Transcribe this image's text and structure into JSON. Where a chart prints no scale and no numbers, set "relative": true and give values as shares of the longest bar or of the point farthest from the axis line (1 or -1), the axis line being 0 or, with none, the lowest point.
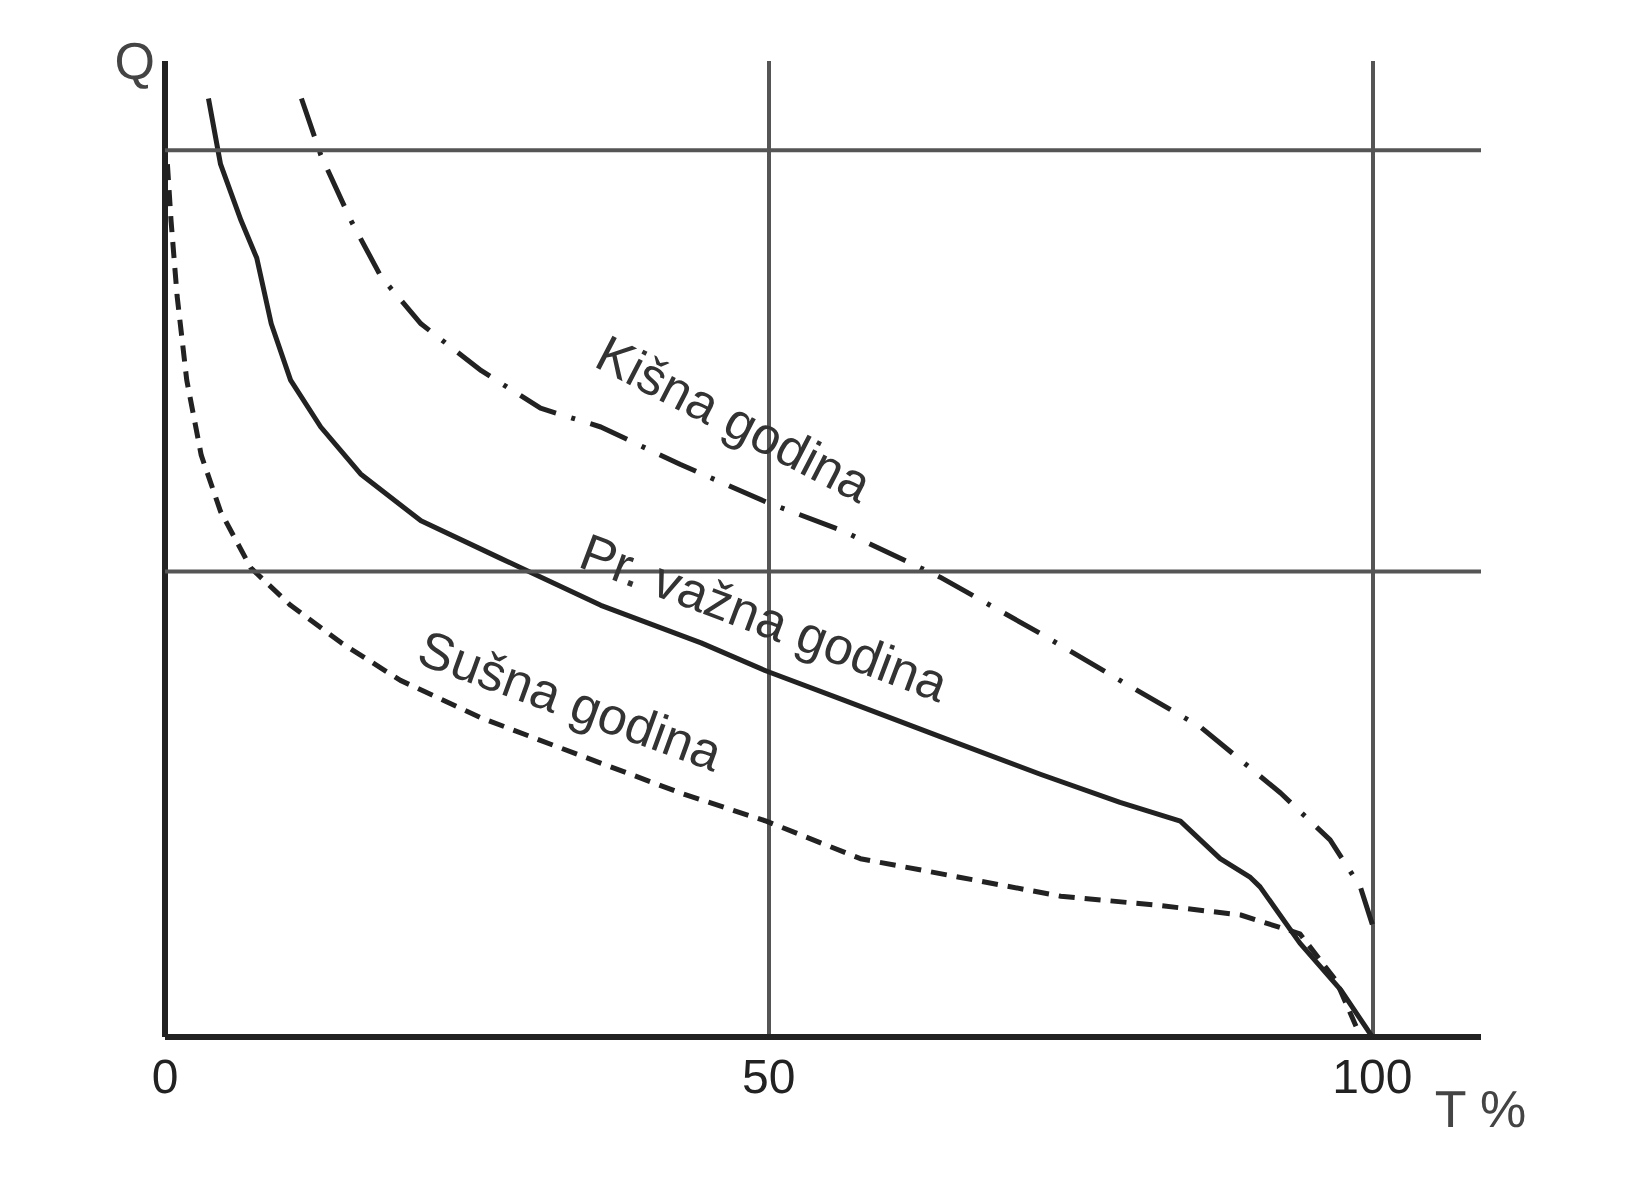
{
  "chart_data": {
    "type": "line",
    "relative": true,
    "ylabel": "Q",
    "xlabel": "T %",
    "xlim": [
      0,
      109
    ],
    "xticks": [
      0,
      50,
      100
    ],
    "grid": "x",
    "tick_labels": "x",
    "legend": false,
    "ref_lines": [
      {
        "axis": "y",
        "value": 0.945,
        "color": "#555555"
      },
      {
        "axis": "y",
        "value": 0.496,
        "color": "#555555"
      }
    ],
    "series": [
      {
        "name": "Kišna godina",
        "color": "#222222",
        "line_style": "dashdot",
        "x": [
          11.3,
          12.9,
          15.4,
          17.9,
          21.2,
          26.2,
          31.1,
          36.1,
          42.7,
          49.8,
          56.0,
          64.2,
          72.5,
          79.1,
          85.8,
          92.4,
          96.5,
          99.0,
          100
        ],
        "values": [
          1.0,
          0.94,
          0.87,
          0.81,
          0.76,
          0.71,
          0.67,
          0.65,
          0.61,
          0.57,
          0.54,
          0.49,
          0.43,
          0.38,
          0.33,
          0.26,
          0.21,
          0.16,
          0.12
        ]
      },
      {
        "name": "Pr. važna godina",
        "color": "#222222",
        "line_style": "solid",
        "x": [
          3.6,
          4.6,
          6.3,
          7.6,
          8.8,
          10.4,
          12.9,
          16.2,
          21.2,
          27.8,
          36.1,
          44.4,
          49.8,
          56.0,
          64.2,
          72.5,
          79.1,
          84.1,
          87.4,
          89.9,
          90.7,
          94.0,
          97.4,
          100
        ],
        "values": [
          1.0,
          0.93,
          0.87,
          0.83,
          0.76,
          0.7,
          0.65,
          0.6,
          0.55,
          0.51,
          0.46,
          0.42,
          0.39,
          0.36,
          0.32,
          0.28,
          0.25,
          0.23,
          0.19,
          0.17,
          0.16,
          0.1,
          0.05,
          0
        ]
      },
      {
        "name": "Sušna godina",
        "color": "#222222",
        "line_style": "dashed",
        "x": [
          0.2,
          0.5,
          1.0,
          1.8,
          3.0,
          4.6,
          7.1,
          10.4,
          14.6,
          19.5,
          26.2,
          34.4,
          42.7,
          49.8,
          57.6,
          65.9,
          74.2,
          82.5,
          89.1,
          94.0,
          97.0,
          98.7
        ],
        "values": [
          0.93,
          0.87,
          0.79,
          0.7,
          0.62,
          0.56,
          0.5,
          0.46,
          0.42,
          0.38,
          0.34,
          0.3,
          0.26,
          0.23,
          0.19,
          0.17,
          0.15,
          0.14,
          0.13,
          0.11,
          0.06,
          0.01
        ]
      }
    ]
  }
}
